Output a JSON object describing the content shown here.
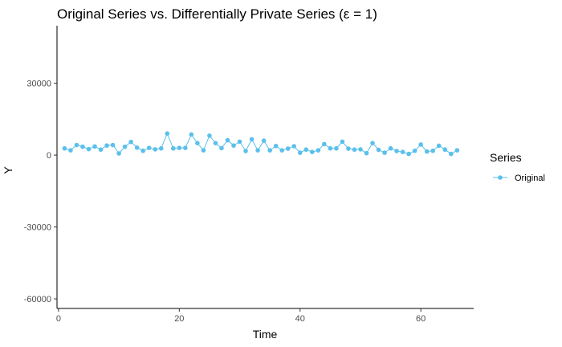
{
  "chart_data": {
    "type": "line",
    "title": "Original Series vs. Differentially Private Series (ε = 1)",
    "xlabel": "Time",
    "ylabel": "Y",
    "xlim": [
      -0.25,
      68.75
    ],
    "ylim": [
      -64000,
      54000
    ],
    "x_ticks": [
      0,
      20,
      40,
      60
    ],
    "y_ticks": [
      -60000,
      -30000,
      0,
      30000
    ],
    "x_tick_labels": [
      "0",
      "20",
      "40",
      "60"
    ],
    "y_tick_labels": [
      "-60000",
      "-30000",
      "0",
      "30000"
    ],
    "grid": false,
    "legend": {
      "title": "Series",
      "position": "right"
    },
    "series": [
      {
        "name": "Original",
        "color": "#5bc0eb",
        "x": [
          1,
          2,
          3,
          4,
          5,
          6,
          7,
          8,
          9,
          10,
          11,
          12,
          13,
          14,
          15,
          16,
          17,
          18,
          19,
          20,
          21,
          22,
          23,
          24,
          25,
          26,
          27,
          28,
          29,
          30,
          31,
          32,
          33,
          34,
          35,
          36,
          37,
          38,
          39,
          40,
          41,
          42,
          43,
          44,
          45,
          46,
          47,
          48,
          49,
          50,
          51,
          52,
          53,
          54,
          55,
          56,
          57,
          58,
          59,
          60,
          61,
          62,
          63,
          64,
          65,
          66
        ],
        "values": [
          2800,
          2000,
          4200,
          3500,
          2500,
          3600,
          2300,
          4000,
          4200,
          700,
          3500,
          5500,
          3100,
          1800,
          3000,
          2400,
          2800,
          9000,
          2800,
          3000,
          3000,
          8600,
          5000,
          2000,
          8100,
          5000,
          2900,
          6200,
          4000,
          5600,
          1700,
          6600,
          2000,
          6000,
          2000,
          3800,
          2000,
          2700,
          3700,
          1000,
          2300,
          1300,
          2000,
          4600,
          2800,
          2800,
          5600,
          2700,
          2300,
          2400,
          800,
          5000,
          2200,
          1000,
          2800,
          1700,
          1300,
          500,
          1800,
          4400,
          1500,
          1800,
          3900,
          2300,
          500,
          2000
        ]
      }
    ]
  }
}
